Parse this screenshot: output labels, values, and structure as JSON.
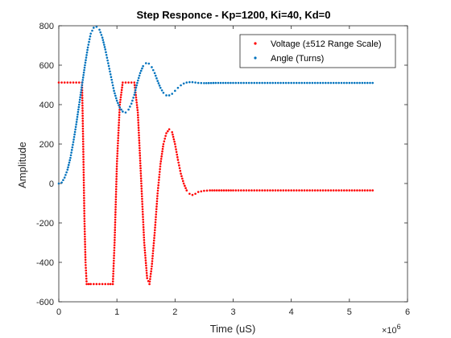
{
  "chart_data": {
    "type": "scatter",
    "title": "Step Responce - Kp=1200, Ki=40, Kd=0",
    "xlabel": "Time (uS)",
    "ylabel": "Amplitude",
    "x_exponent_label": "×10",
    "x_exponent_power": "6",
    "xlim": [
      0,
      6
    ],
    "ylim": [
      -600,
      800
    ],
    "x_ticks": [
      0,
      1,
      2,
      3,
      4,
      5,
      6
    ],
    "y_ticks": [
      -600,
      -400,
      -200,
      0,
      200,
      400,
      600,
      800
    ],
    "grid": false,
    "legend_position": "top-right",
    "series": [
      {
        "name": "Voltage (±512 Range Scale)",
        "color": "#ff0000",
        "points": [
          [
            0.0,
            512
          ],
          [
            0.1,
            512
          ],
          [
            0.2,
            512
          ],
          [
            0.3,
            512
          ],
          [
            0.35,
            512
          ],
          [
            0.4,
            512
          ],
          [
            0.42,
            200
          ],
          [
            0.44,
            -165
          ],
          [
            0.46,
            -400
          ],
          [
            0.48,
            -510
          ],
          [
            0.55,
            -510
          ],
          [
            0.65,
            -510
          ],
          [
            0.75,
            -510
          ],
          [
            0.85,
            -510
          ],
          [
            0.93,
            -510
          ],
          [
            0.96,
            -300
          ],
          [
            1.0,
            100
          ],
          [
            1.05,
            400
          ],
          [
            1.1,
            512
          ],
          [
            1.2,
            512
          ],
          [
            1.3,
            512
          ],
          [
            1.36,
            360
          ],
          [
            1.42,
            0
          ],
          [
            1.47,
            -300
          ],
          [
            1.52,
            -480
          ],
          [
            1.56,
            -510
          ],
          [
            1.6,
            -420
          ],
          [
            1.65,
            -250
          ],
          [
            1.7,
            -50
          ],
          [
            1.75,
            100
          ],
          [
            1.8,
            200
          ],
          [
            1.85,
            255
          ],
          [
            1.9,
            275
          ],
          [
            1.95,
            260
          ],
          [
            2.0,
            200
          ],
          [
            2.05,
            120
          ],
          [
            2.1,
            50
          ],
          [
            2.15,
            0
          ],
          [
            2.2,
            -35
          ],
          [
            2.25,
            -52
          ],
          [
            2.3,
            -58
          ],
          [
            2.35,
            -52
          ],
          [
            2.4,
            -43
          ],
          [
            2.5,
            -37
          ],
          [
            2.6,
            -35
          ],
          [
            2.8,
            -35
          ],
          [
            3.0,
            -35
          ],
          [
            3.5,
            -35
          ],
          [
            4.0,
            -35
          ],
          [
            4.5,
            -35
          ],
          [
            5.0,
            -35
          ],
          [
            5.4,
            -35
          ]
        ]
      },
      {
        "name": "Angle (Turns)",
        "color": "#0072bd",
        "points": [
          [
            0.0,
            0
          ],
          [
            0.05,
            5
          ],
          [
            0.1,
            30
          ],
          [
            0.15,
            70
          ],
          [
            0.2,
            130
          ],
          [
            0.25,
            210
          ],
          [
            0.3,
            300
          ],
          [
            0.35,
            400
          ],
          [
            0.4,
            500
          ],
          [
            0.45,
            600
          ],
          [
            0.5,
            690
          ],
          [
            0.55,
            760
          ],
          [
            0.6,
            790
          ],
          [
            0.65,
            795
          ],
          [
            0.7,
            780
          ],
          [
            0.75,
            740
          ],
          [
            0.8,
            680
          ],
          [
            0.85,
            610
          ],
          [
            0.9,
            540
          ],
          [
            0.95,
            470
          ],
          [
            1.0,
            420
          ],
          [
            1.05,
            385
          ],
          [
            1.1,
            365
          ],
          [
            1.15,
            360
          ],
          [
            1.2,
            375
          ],
          [
            1.25,
            405
          ],
          [
            1.3,
            450
          ],
          [
            1.35,
            510
          ],
          [
            1.4,
            560
          ],
          [
            1.45,
            595
          ],
          [
            1.5,
            610
          ],
          [
            1.55,
            608
          ],
          [
            1.6,
            590
          ],
          [
            1.65,
            560
          ],
          [
            1.7,
            520
          ],
          [
            1.75,
            485
          ],
          [
            1.8,
            460
          ],
          [
            1.85,
            447
          ],
          [
            1.9,
            447
          ],
          [
            1.95,
            455
          ],
          [
            2.0,
            470
          ],
          [
            2.05,
            485
          ],
          [
            2.1,
            498
          ],
          [
            2.15,
            507
          ],
          [
            2.2,
            512
          ],
          [
            2.25,
            514
          ],
          [
            2.3,
            514
          ],
          [
            2.35,
            512
          ],
          [
            2.4,
            510
          ],
          [
            2.5,
            509
          ],
          [
            2.7,
            510
          ],
          [
            3.0,
            510
          ],
          [
            3.5,
            510
          ],
          [
            4.0,
            510
          ],
          [
            4.5,
            510
          ],
          [
            5.0,
            510
          ],
          [
            5.4,
            510
          ]
        ]
      }
    ]
  }
}
